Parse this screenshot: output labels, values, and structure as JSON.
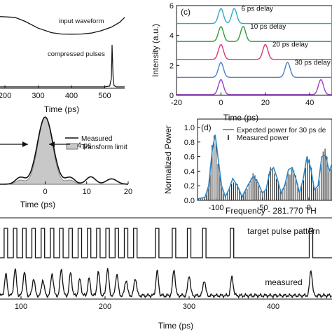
{
  "chart_data": [
    {
      "id": "top-left",
      "type": "line",
      "xlabel": "Time (ps)",
      "xticks": [
        200,
        300,
        400,
        500
      ],
      "xlim": [
        160,
        560
      ],
      "series": [
        {
          "name": "input waveform",
          "x": [
            160,
            200,
            230,
            260,
            300,
            340,
            370,
            400,
            430,
            460,
            490,
            520,
            545,
            560
          ],
          "y": [
            0.95,
            0.93,
            0.9,
            0.7,
            0.35,
            0.12,
            0.05,
            0.04,
            0.05,
            0.1,
            0.22,
            0.4,
            0.65,
            0.9
          ]
        },
        {
          "name": "compressed pulses",
          "x": [
            160,
            500,
            515,
            520,
            522,
            525,
            528,
            535,
            560
          ],
          "y": [
            0,
            0,
            0.02,
            0.2,
            1.0,
            0.25,
            0.03,
            0,
            0
          ]
        }
      ]
    },
    {
      "id": "panel-c",
      "panel": "(c)",
      "type": "line",
      "xlabel": "Time (ps)",
      "ylabel": "Intensity (a.u.)",
      "xlim": [
        -20,
        50
      ],
      "ylim": [
        0,
        6
      ],
      "xticks": [
        -20,
        0,
        20,
        40
      ],
      "yticks": [
        0,
        2,
        4,
        6
      ],
      "series": [
        {
          "name": "6 ps delay",
          "color": "#2fa8c8",
          "offset": 4.8,
          "peaks": [
            [
              0,
              1.0
            ],
            [
              6,
              1.0
            ]
          ]
        },
        {
          "name": "10 ps delay",
          "color": "#2e9c3a",
          "offset": 3.6,
          "peaks": [
            [
              0,
              1.0
            ],
            [
              10,
              1.0
            ]
          ]
        },
        {
          "name": "20 ps delay",
          "color": "#d9366e",
          "offset": 2.4,
          "peaks": [
            [
              0,
              1.0
            ],
            [
              20,
              1.0
            ]
          ]
        },
        {
          "name": "30 ps delay",
          "color": "#4a7fd0",
          "offset": 1.2,
          "peaks": [
            [
              0,
              1.0
            ],
            [
              30,
              1.0
            ]
          ]
        },
        {
          "name": "",
          "color": "#9a40c8",
          "offset": 0.05,
          "peaks": [
            [
              0,
              1.0
            ],
            [
              45,
              1.0
            ]
          ]
        }
      ]
    },
    {
      "id": "middle-left",
      "type": "line",
      "xlabel": "Time (ps)",
      "xlim": [
        -20,
        20
      ],
      "xticks": [
        0,
        10,
        20
      ],
      "annotation": "4 ps",
      "legend": [
        "Measured",
        "Transform limit"
      ],
      "legend_position": "top-right"
    },
    {
      "id": "panel-d",
      "panel": "(d)",
      "type": "bar",
      "xlabel": "Frequency - 281.770 TH",
      "ylabel": "Normalized Power",
      "xlim": [
        -120,
        25
      ],
      "ylim": [
        0,
        1.0
      ],
      "xticks": [
        -100,
        -50,
        0
      ],
      "yticks": [
        0.0,
        0.2,
        0.4,
        0.6,
        0.8,
        1.0
      ],
      "legend": [
        "Expected power for 30 ps de",
        "Measured power"
      ],
      "legend_position": "top-right",
      "envelope": {
        "x": [
          -120,
          -112,
          -108,
          -104,
          -101,
          -98,
          -94,
          -90,
          -86,
          -82,
          -77,
          -72,
          -66,
          -60,
          -55,
          -50,
          -46,
          -42,
          -38,
          -34,
          -30,
          -26,
          -22,
          -18,
          -14,
          -10,
          -6,
          -2,
          2,
          6,
          10,
          14,
          18,
          22,
          25
        ],
        "y": [
          0.02,
          0.04,
          0.2,
          0.7,
          0.9,
          0.6,
          0.2,
          0.05,
          0.15,
          0.3,
          0.2,
          0.05,
          0.2,
          0.33,
          0.25,
          0.1,
          0.15,
          0.4,
          0.45,
          0.3,
          0.1,
          0.2,
          0.42,
          0.45,
          0.3,
          0.1,
          0.3,
          0.6,
          0.45,
          0.15,
          0.2,
          0.6,
          0.62,
          0.4,
          0.5
        ]
      }
    },
    {
      "id": "bottom",
      "type": "line",
      "xlabel": "Time (ps)",
      "xlim": [
        75,
        470
      ],
      "xticks": [
        100,
        200,
        300,
        400
      ],
      "series": [
        {
          "name": "target pulse pattern",
          "pulses": [
            82,
            93,
            104,
            115,
            126,
            137,
            148,
            159,
            170,
            181,
            192,
            203,
            214,
            225,
            236,
            262,
            282,
            300,
            318,
            351,
            445
          ]
        },
        {
          "name": "measured",
          "pulses": [
            82,
            93,
            104,
            115,
            126,
            137,
            148,
            159,
            170,
            181,
            192,
            203,
            214,
            225,
            236,
            262,
            282,
            300,
            318,
            351,
            445
          ]
        }
      ]
    }
  ]
}
